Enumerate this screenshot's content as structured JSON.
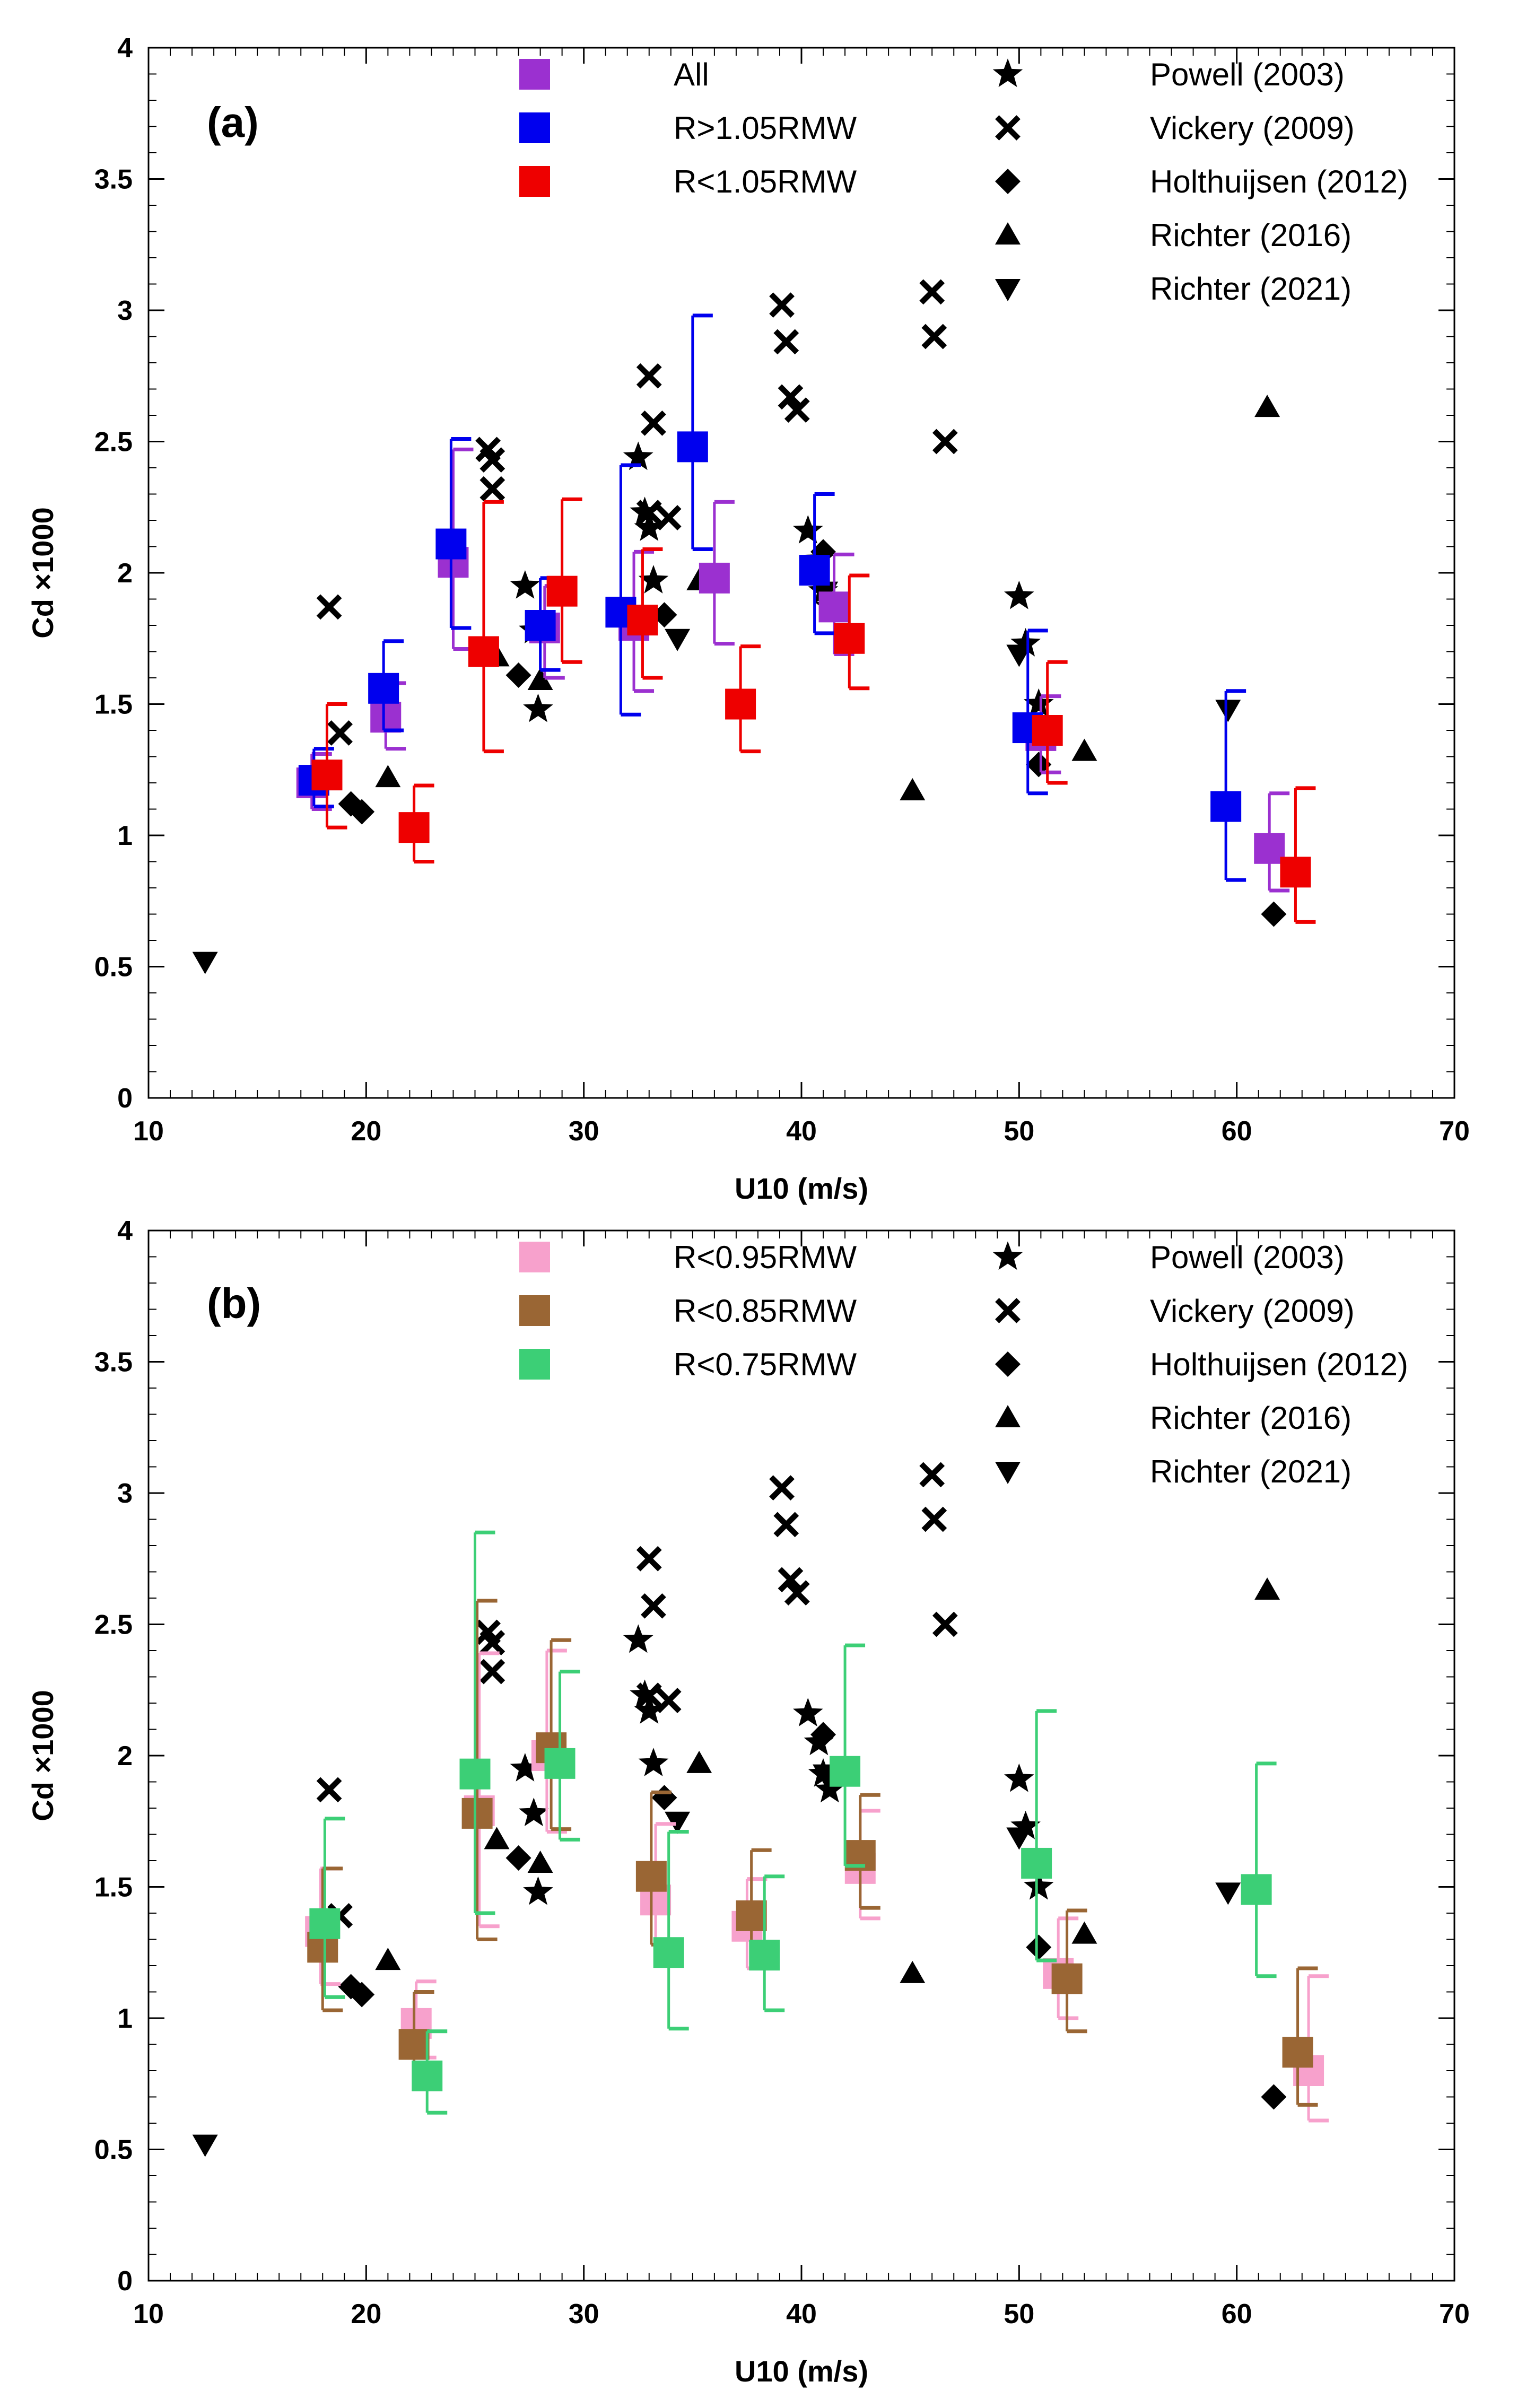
{
  "chart_data": [
    {
      "type": "scatter",
      "panel_label": "(a)",
      "xlabel": "U10 (m/s)",
      "ylabel": "Cd ×1000",
      "xlim": [
        10,
        70
      ],
      "ylim": [
        0,
        4
      ],
      "xticks": [
        10,
        20,
        30,
        40,
        50,
        60,
        70
      ],
      "yticks": [
        0,
        0.5,
        1,
        1.5,
        2,
        2.5,
        3,
        3.5,
        4
      ],
      "legend": [
        {
          "name": "All",
          "marker": "square",
          "color": "#9b30d0"
        },
        {
          "name": "R>1.05RMW",
          "marker": "square",
          "color": "#0000ee"
        },
        {
          "name": "R<1.05RMW",
          "marker": "square",
          "color": "#ee0000"
        },
        {
          "name": "Powell (2003)",
          "marker": "star",
          "color": "#000000"
        },
        {
          "name": "Vickery (2009)",
          "marker": "x",
          "color": "#000000"
        },
        {
          "name": "Holthuijsen (2012)",
          "marker": "diamond",
          "color": "#000000"
        },
        {
          "name": "Richter (2016)",
          "marker": "triangle-up",
          "color": "#000000"
        },
        {
          "name": "Richter (2021)",
          "marker": "triangle-down",
          "color": "#000000"
        }
      ],
      "binned_series": [
        {
          "name": "All",
          "color": "#9b30d0",
          "points": [
            {
              "x": 17.5,
              "y": 1.2,
              "lo": 1.1,
              "hi": 1.31
            },
            {
              "x": 20.9,
              "y": 1.45,
              "lo": 1.33,
              "hi": 1.58
            },
            {
              "x": 24.0,
              "y": 2.04,
              "lo": 1.71,
              "hi": 2.47
            },
            {
              "x": 28.2,
              "y": 1.79,
              "lo": 1.6,
              "hi": 1.95
            },
            {
              "x": 32.3,
              "y": 1.8,
              "lo": 1.55,
              "hi": 2.08
            },
            {
              "x": 36.0,
              "y": 1.98,
              "lo": 1.73,
              "hi": 2.27
            },
            {
              "x": 41.5,
              "y": 1.87,
              "lo": 1.69,
              "hi": 2.07
            },
            {
              "x": 51.0,
              "y": 1.38,
              "lo": 1.24,
              "hi": 1.53
            },
            {
              "x": 61.5,
              "y": 0.95,
              "lo": 0.79,
              "hi": 1.16
            }
          ]
        },
        {
          "name": "R>1.05RMW",
          "color": "#0000ee",
          "points": [
            {
              "x": 17.6,
              "y": 1.21,
              "lo": 1.11,
              "hi": 1.33
            },
            {
              "x": 20.8,
              "y": 1.56,
              "lo": 1.4,
              "hi": 1.74
            },
            {
              "x": 23.9,
              "y": 2.11,
              "lo": 1.79,
              "hi": 2.51
            },
            {
              "x": 28.0,
              "y": 1.8,
              "lo": 1.63,
              "hi": 1.98
            },
            {
              "x": 31.7,
              "y": 1.85,
              "lo": 1.46,
              "hi": 2.41
            },
            {
              "x": 35.0,
              "y": 2.48,
              "lo": 2.09,
              "hi": 2.98
            },
            {
              "x": 40.6,
              "y": 2.01,
              "lo": 1.77,
              "hi": 2.3
            },
            {
              "x": 50.4,
              "y": 1.41,
              "lo": 1.16,
              "hi": 1.78
            },
            {
              "x": 59.5,
              "y": 1.11,
              "lo": 0.83,
              "hi": 1.55
            }
          ]
        },
        {
          "name": "R<1.05RMW",
          "color": "#ee0000",
          "points": [
            {
              "x": 18.2,
              "y": 1.23,
              "lo": 1.03,
              "hi": 1.5
            },
            {
              "x": 22.2,
              "y": 1.03,
              "lo": 0.9,
              "hi": 1.19
            },
            {
              "x": 25.4,
              "y": 1.7,
              "lo": 1.32,
              "hi": 2.27
            },
            {
              "x": 29.0,
              "y": 1.93,
              "lo": 1.66,
              "hi": 2.28
            },
            {
              "x": 32.7,
              "y": 1.82,
              "lo": 1.6,
              "hi": 2.09
            },
            {
              "x": 37.2,
              "y": 1.5,
              "lo": 1.32,
              "hi": 1.72
            },
            {
              "x": 42.2,
              "y": 1.75,
              "lo": 1.56,
              "hi": 1.99
            },
            {
              "x": 51.3,
              "y": 1.4,
              "lo": 1.2,
              "hi": 1.66
            },
            {
              "x": 62.7,
              "y": 0.86,
              "lo": 0.67,
              "hi": 1.18
            }
          ]
        }
      ],
      "reference_series": [
        {
          "name": "Powell (2003)",
          "marker": "star",
          "x": [
            27.3,
            27.7,
            27.9,
            32.5,
            32.8,
            33.0,
            33.2,
            40.3,
            40.8,
            41.0,
            41.3,
            50.0,
            50.3,
            50.9
          ],
          "y": [
            1.95,
            1.78,
            1.48,
            2.44,
            2.23,
            2.17,
            1.97,
            2.16,
            2.05,
            1.93,
            1.87,
            1.91,
            1.73,
            1.5
          ]
        },
        {
          "name": "Vickery (2009)",
          "marker": "x",
          "x": [
            18.3,
            18.8,
            25.6,
            25.8,
            25.8,
            33.0,
            33.2,
            33.0,
            33.9,
            39.1,
            39.3,
            39.5,
            39.8,
            46.0,
            46.1,
            46.6
          ],
          "y": [
            1.87,
            1.39,
            2.47,
            2.43,
            2.32,
            2.75,
            2.57,
            2.23,
            2.21,
            3.02,
            2.88,
            2.67,
            2.62,
            3.07,
            2.9,
            2.5
          ]
        },
        {
          "name": "Holthuijsen (2012)",
          "marker": "diamond",
          "x": [
            19.3,
            19.8,
            27.0,
            33.7,
            41.0,
            50.9,
            61.7
          ],
          "y": [
            1.12,
            1.09,
            1.61,
            1.84,
            2.08,
            1.27,
            0.7
          ]
        },
        {
          "name": "Richter (2016)",
          "marker": "triangle-up",
          "x": [
            21.0,
            26.0,
            28.0,
            35.3,
            45.1,
            53.0,
            61.4
          ],
          "y": [
            1.22,
            1.68,
            1.59,
            1.97,
            1.17,
            1.32,
            2.63
          ]
        },
        {
          "name": "Richter (2021)",
          "marker": "triangle-down",
          "x": [
            12.6,
            34.3,
            41.1,
            50.0,
            59.6
          ],
          "y": [
            0.52,
            1.75,
            1.93,
            1.69,
            1.48
          ]
        }
      ]
    },
    {
      "type": "scatter",
      "panel_label": "(b)",
      "xlabel": "U10 (m/s)",
      "ylabel": "Cd ×1000",
      "xlim": [
        10,
        70
      ],
      "ylim": [
        0,
        4
      ],
      "xticks": [
        10,
        20,
        30,
        40,
        50,
        60,
        70
      ],
      "yticks": [
        0,
        0.5,
        1,
        1.5,
        2,
        2.5,
        3,
        3.5,
        4
      ],
      "legend": [
        {
          "name": "R<0.95RMW",
          "marker": "square",
          "color": "#f7a1cc"
        },
        {
          "name": "R<0.85RMW",
          "marker": "square",
          "color": "#9a6634"
        },
        {
          "name": "R<0.75RMW",
          "marker": "square",
          "color": "#3ccf76"
        },
        {
          "name": "Powell (2003)",
          "marker": "star",
          "color": "#000000"
        },
        {
          "name": "Vickery (2009)",
          "marker": "x",
          "color": "#000000"
        },
        {
          "name": "Holthuijsen (2012)",
          "marker": "diamond",
          "color": "#000000"
        },
        {
          "name": "Richter (2016)",
          "marker": "triangle-up",
          "color": "#000000"
        },
        {
          "name": "Richter (2021)",
          "marker": "triangle-down",
          "color": "#000000"
        }
      ],
      "binned_series": [
        {
          "name": "R<0.95RMW",
          "color": "#f7a1cc",
          "points": [
            {
              "x": 17.9,
              "y": 1.33,
              "lo": 1.13,
              "hi": 1.57
            },
            {
              "x": 22.3,
              "y": 0.98,
              "lo": 0.85,
              "hi": 1.14
            },
            {
              "x": 25.2,
              "y": 1.79,
              "lo": 1.35,
              "hi": 2.39
            },
            {
              "x": 28.3,
              "y": 2.0,
              "lo": 1.71,
              "hi": 2.4
            },
            {
              "x": 33.3,
              "y": 1.45,
              "lo": 1.2,
              "hi": 1.74
            },
            {
              "x": 37.5,
              "y": 1.35,
              "lo": 1.19,
              "hi": 1.53
            },
            {
              "x": 42.7,
              "y": 1.57,
              "lo": 1.38,
              "hi": 1.79
            },
            {
              "x": 51.8,
              "y": 1.17,
              "lo": 1.0,
              "hi": 1.38
            },
            {
              "x": 63.3,
              "y": 0.8,
              "lo": 0.61,
              "hi": 1.16
            }
          ]
        },
        {
          "name": "R<0.85RMW",
          "color": "#9a6634",
          "points": [
            {
              "x": 18.0,
              "y": 1.27,
              "lo": 1.03,
              "hi": 1.57
            },
            {
              "x": 22.2,
              "y": 0.9,
              "lo": 0.74,
              "hi": 1.1
            },
            {
              "x": 25.1,
              "y": 1.78,
              "lo": 1.3,
              "hi": 2.59
            },
            {
              "x": 28.5,
              "y": 2.03,
              "lo": 1.72,
              "hi": 2.44
            },
            {
              "x": 33.1,
              "y": 1.54,
              "lo": 1.28,
              "hi": 1.86
            },
            {
              "x": 37.7,
              "y": 1.39,
              "lo": 1.2,
              "hi": 1.64
            },
            {
              "x": 42.7,
              "y": 1.62,
              "lo": 1.42,
              "hi": 1.85
            },
            {
              "x": 52.2,
              "y": 1.15,
              "lo": 0.95,
              "hi": 1.41
            },
            {
              "x": 62.8,
              "y": 0.87,
              "lo": 0.67,
              "hi": 1.19
            }
          ]
        },
        {
          "name": "R<0.75RMW",
          "color": "#3ccf76",
          "points": [
            {
              "x": 18.1,
              "y": 1.36,
              "lo": 1.08,
              "hi": 1.76
            },
            {
              "x": 22.8,
              "y": 0.78,
              "lo": 0.64,
              "hi": 0.95
            },
            {
              "x": 25.0,
              "y": 1.93,
              "lo": 1.4,
              "hi": 2.85
            },
            {
              "x": 28.9,
              "y": 1.97,
              "lo": 1.68,
              "hi": 2.32
            },
            {
              "x": 33.9,
              "y": 1.25,
              "lo": 0.96,
              "hi": 1.71
            },
            {
              "x": 38.3,
              "y": 1.24,
              "lo": 1.03,
              "hi": 1.54
            },
            {
              "x": 42.0,
              "y": 1.94,
              "lo": 1.58,
              "hi": 2.42
            },
            {
              "x": 50.8,
              "y": 1.59,
              "lo": 1.22,
              "hi": 2.17
            },
            {
              "x": 60.9,
              "y": 1.49,
              "lo": 1.16,
              "hi": 1.97
            }
          ]
        }
      ],
      "reference_series": [
        {
          "name": "Powell (2003)",
          "marker": "star",
          "x": [
            27.3,
            27.7,
            27.9,
            32.5,
            32.8,
            33.0,
            33.2,
            40.3,
            40.8,
            41.0,
            41.3,
            50.0,
            50.3,
            50.9
          ],
          "y": [
            1.95,
            1.78,
            1.48,
            2.44,
            2.23,
            2.17,
            1.97,
            2.16,
            2.05,
            1.93,
            1.87,
            1.91,
            1.73,
            1.5
          ]
        },
        {
          "name": "Vickery (2009)",
          "marker": "x",
          "x": [
            18.3,
            18.8,
            25.6,
            25.8,
            25.8,
            33.0,
            33.2,
            33.0,
            33.9,
            39.1,
            39.3,
            39.5,
            39.8,
            46.0,
            46.1,
            46.6
          ],
          "y": [
            1.87,
            1.39,
            2.47,
            2.43,
            2.32,
            2.75,
            2.57,
            2.23,
            2.21,
            3.02,
            2.88,
            2.67,
            2.62,
            3.07,
            2.9,
            2.5
          ]
        },
        {
          "name": "Holthuijsen (2012)",
          "marker": "diamond",
          "x": [
            19.3,
            19.8,
            27.0,
            33.7,
            41.0,
            50.9,
            61.7
          ],
          "y": [
            1.12,
            1.09,
            1.61,
            1.84,
            2.08,
            1.27,
            0.7
          ]
        },
        {
          "name": "Richter (2016)",
          "marker": "triangle-up",
          "x": [
            21.0,
            26.0,
            28.0,
            35.3,
            45.1,
            53.0,
            61.4
          ],
          "y": [
            1.22,
            1.68,
            1.59,
            1.97,
            1.17,
            1.32,
            2.63
          ]
        },
        {
          "name": "Richter (2021)",
          "marker": "triangle-down",
          "x": [
            12.6,
            34.3,
            41.1,
            50.0,
            59.6
          ],
          "y": [
            0.52,
            1.75,
            1.93,
            1.69,
            1.48
          ]
        }
      ]
    }
  ]
}
